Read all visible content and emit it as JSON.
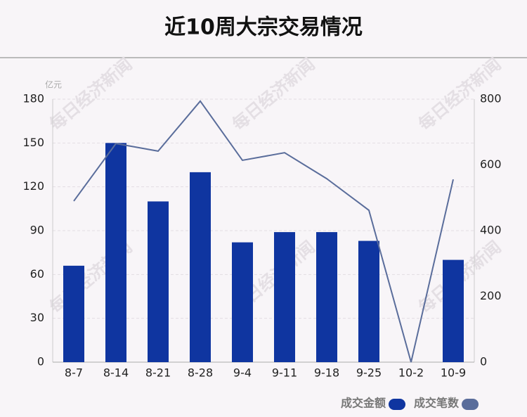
{
  "chart_data": {
    "type": "bar",
    "title": "近10周大宗交易情况",
    "y_label": "亿元",
    "watermark": "每日经济新闻",
    "categories": [
      "8-7",
      "8-14",
      "8-21",
      "8-28",
      "9-4",
      "9-11",
      "9-18",
      "9-25",
      "10-2",
      "10-9"
    ],
    "series": [
      {
        "name": "成交金额",
        "color": "#0f35a0",
        "type": "bar",
        "values": [
          66,
          150,
          110,
          130,
          82,
          89,
          89,
          83,
          0,
          70
        ]
      },
      {
        "name": "成交笔数",
        "color": "#5a6d9b",
        "type": "line",
        "axis": "y2",
        "values": [
          490,
          665,
          642,
          794,
          614,
          637,
          558,
          462,
          0,
          556
        ]
      }
    ],
    "ylim": [
      0,
      180
    ],
    "yticks": [
      0,
      30,
      60,
      90,
      120,
      150,
      180
    ],
    "y2lim": [
      0,
      800
    ],
    "y2ticks": [
      0,
      200,
      400,
      600,
      800
    ],
    "grid": true
  }
}
